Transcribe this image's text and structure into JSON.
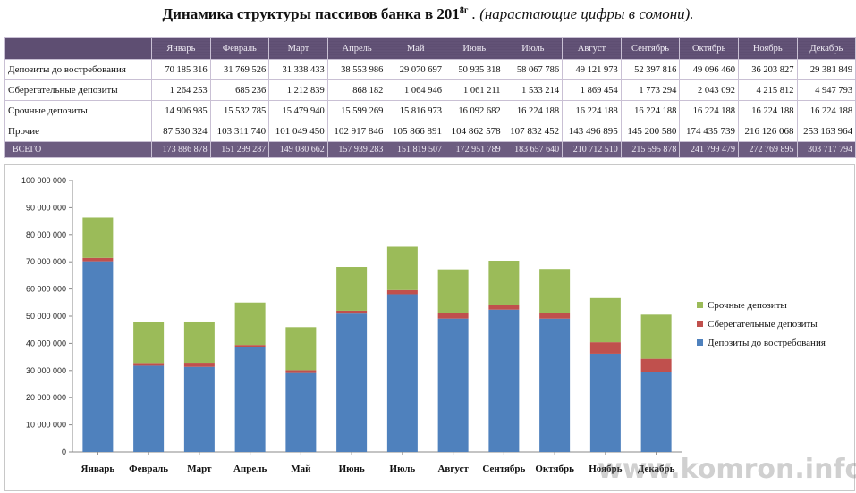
{
  "title": {
    "main": "Динамика структуры пассивов банка в 201",
    "sup": "8г",
    "note": " . (нарастающие цифры в сомони)."
  },
  "table": {
    "months": [
      "Январь",
      "Февраль",
      "Март",
      "Апрель",
      "Май",
      "Июнь",
      "Июль",
      "Август",
      "Сентябрь",
      "Октябрь",
      "Ноябрь",
      "Декабрь"
    ],
    "rows": [
      {
        "label": "Депозиты до востребования",
        "values": [
          "70 185 316",
          "31 769 526",
          "31 338 433",
          "38 553 986",
          "29 070 697",
          "50 935 318",
          "58 067 786",
          "49 121 973",
          "52 397 816",
          "49 096 460",
          "36 203 827",
          "29 381 849"
        ]
      },
      {
        "label": "Сберегательные депозиты",
        "values": [
          "1 264 253",
          "685 236",
          "1 212 839",
          "868 182",
          "1 064 946",
          "1 061 211",
          "1 533 214",
          "1 869 454",
          "1 773 294",
          "2 043 092",
          "4 215 812",
          "4 947 793"
        ]
      },
      {
        "label": "Срочные депозиты",
        "values": [
          "14 906 985",
          "15 532 785",
          "15 479 940",
          "15 599 269",
          "15 816 973",
          "16 092 682",
          "16 224 188",
          "16 224 188",
          "16 224 188",
          "16 224 188",
          "16 224 188",
          "16 224 188"
        ]
      },
      {
        "label": "Прочие",
        "values": [
          "87 530 324",
          "103 311 740",
          "101 049 450",
          "102 917 846",
          "105 866 891",
          "104 862 578",
          "107 832 452",
          "143 496 895",
          "145 200 580",
          "174 435 739",
          "216 126 068",
          "253 163 964"
        ]
      }
    ],
    "total": {
      "label": "ВСЕГО",
      "values": [
        "173 886 878",
        "151 299 287",
        "149 080 662",
        "157 939 283",
        "151 819 507",
        "172 951 789",
        "183 657 640",
        "210 712 510",
        "215 595 878",
        "241 799 479",
        "272 769 895",
        "303 717 794"
      ]
    }
  },
  "chart_data": {
    "type": "bar",
    "stacked": true,
    "categories": [
      "Январь",
      "Февраль",
      "Март",
      "Апрель",
      "Май",
      "Июнь",
      "Июль",
      "Август",
      "Сентябрь",
      "Октябрь",
      "Ноябрь",
      "Декабрь"
    ],
    "series": [
      {
        "name": "Депозиты до востребования",
        "color": "#4f81bd",
        "values": [
          70185316,
          31769526,
          31338433,
          38553986,
          29070697,
          50935318,
          58067786,
          49121973,
          52397816,
          49096460,
          36203827,
          29381849
        ]
      },
      {
        "name": "Сберегательные депозиты",
        "color": "#c0504d",
        "values": [
          1264253,
          685236,
          1212839,
          868182,
          1064946,
          1061211,
          1533214,
          1869454,
          1773294,
          2043092,
          4215812,
          4947793
        ]
      },
      {
        "name": "Срочные депозиты",
        "color": "#9bbb59",
        "values": [
          14906985,
          15532785,
          15479940,
          15599269,
          15816973,
          16092682,
          16224188,
          16224188,
          16224188,
          16224188,
          16224188,
          16224188
        ]
      }
    ],
    "ylim": [
      0,
      100000000
    ],
    "yticks": [
      0,
      10000000,
      20000000,
      30000000,
      40000000,
      50000000,
      60000000,
      70000000,
      80000000,
      90000000,
      100000000
    ],
    "ytick_labels": [
      "0",
      "10 000 000",
      "20 000 000",
      "30 000 000",
      "40 000 000",
      "50 000 000",
      "60 000 000",
      "70 000 000",
      "80 000 000",
      "90 000 000",
      "100 000 000"
    ],
    "legend_order": [
      "Срочные депозиты",
      "Сберегательные депозиты",
      "Депозиты до востребования"
    ],
    "legend_placement": "right",
    "grid": false
  },
  "watermark": "www.komron.info"
}
